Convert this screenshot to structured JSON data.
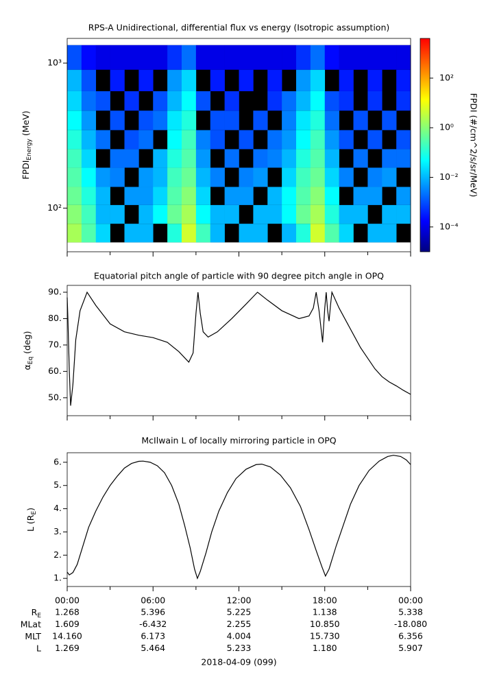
{
  "chart_data": [
    {
      "type": "heatmap",
      "title": "RPS-A Unidirectional, differential flux vs energy (Isotropic assumption)",
      "ylabel": "FPDI",
      "ylabel_sub": "Energy",
      "ylabel_tail": " (MeV)",
      "xlim": [
        0,
        24
      ],
      "xticks": [
        0,
        6,
        12,
        18,
        24
      ],
      "xminor": [
        3,
        9,
        15,
        21
      ],
      "ylim": [
        50,
        1480
      ],
      "log_y": true,
      "yticks": [
        {
          "value": 100,
          "label": "10²"
        },
        {
          "value": 1000,
          "label": "10³"
        }
      ],
      "x_edges": [
        0,
        1,
        2,
        3,
        4,
        5,
        6,
        7,
        8,
        9,
        10,
        11,
        12,
        13,
        14,
        15,
        16,
        17,
        18,
        19,
        20,
        21,
        22,
        23,
        24
      ],
      "y_edges": [
        58,
        78,
        105,
        140,
        190,
        255,
        345,
        470,
        640,
        900,
        1330
      ],
      "values": [
        [
          2,
          0.3,
          0.02,
          null,
          0.01,
          0.01,
          null,
          0.1,
          5,
          0.2,
          0.01,
          null,
          0.01,
          0.01,
          null,
          0.01,
          0.1,
          5,
          0.3,
          0.02,
          null,
          0.01,
          0.01,
          null
        ],
        [
          1,
          0.2,
          0.01,
          0.01,
          null,
          0.01,
          0.05,
          0.5,
          2,
          0.05,
          0.01,
          0.01,
          null,
          0.01,
          0.01,
          0.05,
          0.5,
          2,
          0.1,
          0.01,
          0.01,
          null,
          0.01,
          0.01
        ],
        [
          0.5,
          0.1,
          0.01,
          null,
          0.005,
          0.005,
          0.02,
          0.3,
          1,
          0.02,
          null,
          0.005,
          0.005,
          null,
          0.01,
          0.05,
          0.3,
          1,
          0.05,
          null,
          0.005,
          0.005,
          null,
          0.005
        ],
        [
          0.3,
          0.05,
          0.005,
          0.003,
          null,
          0.005,
          0.01,
          0.2,
          0.5,
          0.01,
          0.003,
          null,
          0.003,
          0.005,
          null,
          0.02,
          0.2,
          0.5,
          0.02,
          0.003,
          null,
          0.003,
          0.005,
          null
        ],
        [
          0.2,
          0.02,
          null,
          0.002,
          0.002,
          null,
          0.01,
          0.1,
          0.3,
          0.005,
          null,
          0.002,
          null,
          0.002,
          0.003,
          0.01,
          0.1,
          0.3,
          0.01,
          null,
          0.002,
          null,
          0.002,
          0.002
        ],
        [
          0.1,
          0.01,
          0.002,
          null,
          0.001,
          0.002,
          null,
          0.05,
          0.2,
          0.003,
          0.001,
          null,
          0.001,
          null,
          0.002,
          0.005,
          0.05,
          0.2,
          0.005,
          0.001,
          null,
          0.001,
          null,
          0.001
        ],
        [
          0.05,
          0.005,
          null,
          0.001,
          null,
          0.001,
          0.002,
          0.03,
          0.1,
          null,
          0.001,
          0.001,
          null,
          0.001,
          null,
          0.003,
          0.03,
          0.1,
          0.002,
          null,
          0.001,
          null,
          0.001,
          null
        ],
        [
          0.02,
          0.002,
          0.001,
          null,
          0.0005,
          null,
          0.001,
          0.01,
          0.05,
          0.001,
          null,
          0.0005,
          null,
          null,
          0.0005,
          0.002,
          0.01,
          0.05,
          0.001,
          0.0005,
          null,
          0.0005,
          null,
          0.0005
        ],
        [
          0.01,
          0.001,
          null,
          0.0003,
          null,
          0.0003,
          null,
          0.005,
          0.02,
          null,
          0.0003,
          null,
          0.0003,
          null,
          0.0003,
          null,
          0.005,
          0.02,
          null,
          0.0003,
          null,
          0.0003,
          null,
          0.0003
        ],
        [
          0.001,
          0.0002,
          0.0001,
          0.0001,
          0.0001,
          0.0001,
          0.0001,
          0.0005,
          0.002,
          0.0001,
          0.0001,
          0.0001,
          0.0001,
          0.0001,
          0.0001,
          0.0001,
          0.0005,
          0.002,
          0.0002,
          0.0001,
          0.0001,
          0.0001,
          0.0001,
          0.0001
        ]
      ],
      "colorbar": {
        "label": "FPDI (#/cm^2/s/sr/MeV)",
        "zlim": [
          1e-05,
          4000
        ],
        "log_z": true,
        "ticks": [
          {
            "value": 100,
            "label": "10²"
          },
          {
            "value": 1,
            "label": "10⁰"
          },
          {
            "value": 0.01,
            "label": "10⁻²"
          },
          {
            "value": 0.0001,
            "label": "10⁻⁴"
          }
        ],
        "colormap": [
          "#00007f",
          "#0000ff",
          "#007fff",
          "#00ffff",
          "#7fff7f",
          "#ffff00",
          "#ff7f00",
          "#ff0000"
        ]
      }
    },
    {
      "type": "line",
      "title": "Equatorial pitch angle of particle with 90 degree pitch angle in OPQ",
      "ylabel": "α",
      "ylabel_sub": "Eq",
      "ylabel_tail": " (deg)",
      "color": "#000000",
      "xlim": [
        0,
        24
      ],
      "xticks": [
        0,
        6,
        12,
        18,
        24
      ],
      "xminor": [
        3,
        9,
        15,
        21
      ],
      "ylim": [
        43.2,
        92.6
      ],
      "yticks": [
        {
          "value": 50,
          "label": "50."
        },
        {
          "value": 60,
          "label": "60."
        },
        {
          "value": 70,
          "label": "70."
        },
        {
          "value": 80,
          "label": "80."
        },
        {
          "value": 90,
          "label": "90."
        }
      ],
      "x": [
        0,
        0.05,
        0.15,
        0.24,
        0.4,
        0.6,
        0.9,
        1.39,
        2,
        3,
        4,
        5,
        6,
        7,
        7.8,
        8.5,
        8.8,
        9.0,
        9.14,
        9.3,
        9.5,
        9.85,
        10.5,
        11.5,
        12.5,
        13.3,
        14,
        15,
        16.2,
        16.9,
        17.2,
        17.4,
        17.6,
        17.85,
        18.0,
        18.1,
        18.2,
        18.3,
        18.4,
        18.5,
        19,
        19.5,
        20,
        20.5,
        21,
        21.5,
        22,
        22.5,
        23,
        23.5,
        24
      ],
      "values": [
        88,
        80,
        60,
        47,
        55,
        72,
        83,
        90,
        85,
        78,
        75,
        73.7,
        72.8,
        71,
        67.5,
        63.5,
        67,
        82,
        90,
        82,
        75,
        73,
        75,
        80,
        85.5,
        90,
        87,
        83,
        80,
        81,
        84,
        90,
        83,
        71,
        84,
        90,
        83,
        79,
        85,
        90,
        84,
        79,
        74,
        69,
        65,
        61,
        58,
        56,
        54.5,
        52.8,
        51.3
      ]
    },
    {
      "type": "line",
      "title": "McIlwain L of locally mirroring particle in OPQ",
      "ylabel": "L (R",
      "ylabel_sub": "E",
      "ylabel_tail": ")",
      "xlabel": "2018-04-09 (099)",
      "color": "#000000",
      "xlim": [
        0,
        24
      ],
      "xticks": [
        {
          "value": 0,
          "label": "00:00"
        },
        {
          "value": 6,
          "label": "06:00"
        },
        {
          "value": 12,
          "label": "12:00"
        },
        {
          "value": 18,
          "label": "18:00"
        },
        {
          "value": 24,
          "label": "00:00"
        }
      ],
      "xminor": [
        3,
        9,
        15,
        21
      ],
      "ylim": [
        0.65,
        6.41
      ],
      "yticks": [
        {
          "value": 1,
          "label": "1."
        },
        {
          "value": 2,
          "label": "2."
        },
        {
          "value": 3,
          "label": "3."
        },
        {
          "value": 4,
          "label": "4."
        },
        {
          "value": 5,
          "label": "5."
        },
        {
          "value": 6,
          "label": "6."
        }
      ],
      "x": [
        0,
        0.15,
        0.4,
        0.7,
        1,
        1.5,
        2,
        2.5,
        3,
        3.5,
        4,
        4.5,
        5,
        5.3,
        5.8,
        6.3,
        6.8,
        7.3,
        7.8,
        8.2,
        8.6,
        8.9,
        9.1,
        9.3,
        9.7,
        10.1,
        10.6,
        11.2,
        11.8,
        12.5,
        13.2,
        13.6,
        14.2,
        14.9,
        15.6,
        16.3,
        16.9,
        17.4,
        17.8,
        18.05,
        18.3,
        18.8,
        19.3,
        19.8,
        20.4,
        21.1,
        21.8,
        22.4,
        22.8,
        23.3,
        23.7,
        24
      ],
      "values": [
        1.27,
        1.15,
        1.25,
        1.6,
        2.2,
        3.2,
        3.9,
        4.5,
        5.0,
        5.4,
        5.75,
        5.95,
        6.04,
        6.05,
        6.0,
        5.85,
        5.55,
        5.0,
        4.2,
        3.3,
        2.3,
        1.4,
        1.0,
        1.3,
        2.1,
        3.0,
        3.9,
        4.7,
        5.3,
        5.7,
        5.9,
        5.92,
        5.8,
        5.45,
        4.9,
        4.1,
        3.1,
        2.2,
        1.5,
        1.1,
        1.4,
        2.4,
        3.3,
        4.2,
        5.0,
        5.65,
        6.05,
        6.25,
        6.3,
        6.25,
        6.1,
        5.9
      ]
    }
  ],
  "ephemeris": {
    "rows": [
      {
        "label": "R",
        "label_sub": "E",
        "values": [
          "1.268",
          "5.396",
          "5.225",
          "1.138",
          "5.338"
        ]
      },
      {
        "label": "MLat",
        "values": [
          "1.609",
          "-6.432",
          "2.255",
          "10.850",
          "-18.080"
        ]
      },
      {
        "label": "MLT",
        "values": [
          "14.160",
          "6.173",
          "4.004",
          "15.730",
          "6.356"
        ]
      },
      {
        "label": "L",
        "values": [
          "1.269",
          "5.464",
          "5.233",
          "1.180",
          "5.907"
        ]
      }
    ]
  }
}
